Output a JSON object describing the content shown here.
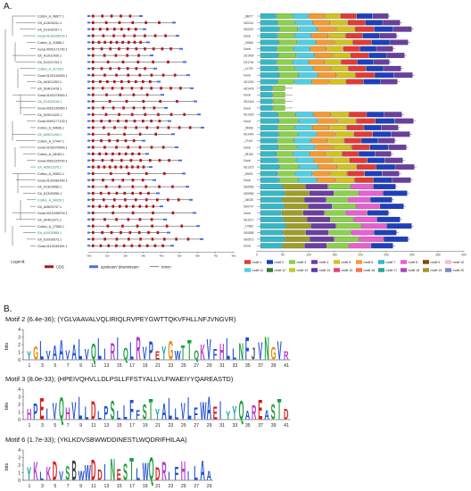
{
  "figure": {
    "panel_a_label": "A.",
    "panel_b_label": "B."
  },
  "gene_structure": {
    "genes": [
      "Cotton_A_08677.1",
      "Gh_A13G0241.1",
      "Gh_D13G0257.1",
      "Gorai.013G026100.1",
      "Cotton_A_31866.1",
      "Gorai.009G171700.1",
      "Gh_A12G1439.1",
      "Gh_D12G1704.1",
      "Cotton_A_11729.1",
      "Gorai.012G164300.1",
      "Gh_A04G1253.1",
      "Gh_D04G1478.1",
      "Gorai.010G078300.1",
      "Gh_D13G2418.1",
      "Gorai.002G150900.1",
      "Gh_D09G1425.1",
      "Gorai.009G177100.1",
      "Cotton_A_04696.1",
      "Gh_A05G1440.1",
      "Cotton_A_27447.1",
      "Gorai.010G075000.1",
      "Cotton_A_28163.1",
      "Gorai.005G225700.1",
      "Gh_A05G1375.1",
      "Cotton_A_00601.1",
      "Gorai.013G081000.1",
      "Gh_A13G0956.1",
      "Gh_D13G0956.1",
      "Cotton_A_34026.1",
      "Gh_A05G0747.1",
      "Gorai.001G098700.1",
      "Gh_A04G1071.1",
      "Cotton_A_17583.1",
      "Gh_A10G0585.1",
      "Gh_D10G0573.1",
      "Gorai.011G045100.1"
    ],
    "axis_ticks": [
      "0kb",
      "1kb",
      "2kb",
      "3kb",
      "4kb",
      "5kb",
      "6kb",
      "7kb",
      "8kb"
    ],
    "legend_title": "Legend:",
    "legend_items": [
      "CDS",
      "upstream/ downstream",
      "Intron"
    ],
    "colors": {
      "cds": "#b5121b",
      "utr": "#4a6fe3",
      "intron": "#333333"
    }
  },
  "motif_map": {
    "axis_ticks": [
      "0",
      "50",
      "100",
      "150",
      "200",
      "250",
      "300",
      "350",
      "400"
    ],
    "motif_labels": [
      "motif 1",
      "motif 2",
      "motif 3",
      "motif 4",
      "motif 5",
      "motif 6",
      "motif 7",
      "motif 8",
      "motif 9",
      "motif 10",
      "motif 11",
      "motif 12",
      "motif 13",
      "motif 14",
      "motif 15",
      "motif 16",
      "motif 17",
      "motif 18",
      "motif 19",
      "motif 20"
    ],
    "motif_colors": [
      "#e53935",
      "#1e3fbf",
      "#8ad14a",
      "#6a3fa0",
      "#d4c21a",
      "#f59a2e",
      "#33b8c8",
      "#e85fd0",
      "#8b4513",
      "#f8bbd0",
      "#4dd0e1",
      "#2e7d32",
      "#c0ca33",
      "#5e35b1",
      "#ec407a",
      "#ff7043",
      "#26a69a",
      "#ab47bc",
      "#9e9d24",
      "#7986cb"
    ]
  },
  "logos": [
    {
      "title": "Motif 2 (6.4e-36); (YGLVAAVALVQLIRIQLRVPEYGWTTQKVFHLLNFJVNGVR)",
      "y_label": "bits",
      "y_ticks": [
        "4",
        "3",
        "2",
        "1",
        "0"
      ],
      "x_ticks": [
        "1",
        "3",
        "5",
        "7",
        "9",
        "11",
        "13",
        "15",
        "17",
        "19",
        "21",
        "23",
        "25",
        "27",
        "29",
        "31",
        "33",
        "35",
        "37",
        "39",
        "41"
      ],
      "sequence": "YGLVAAVALVQLIRIQLRVPEYGWTTQKVFHLLNFJVNGVR"
    },
    {
      "title": "Motif 3 (8.0e-33); (HPEIVQHVLLDLPSLLFFSTYALLVLFWAEIYYQAREASTD)",
      "y_label": "bits",
      "y_ticks": [
        "4",
        "3",
        "2",
        "1",
        "0"
      ],
      "x_ticks": [
        "1",
        "3",
        "5",
        "7",
        "9",
        "11",
        "13",
        "15",
        "17",
        "19",
        "21",
        "23",
        "25",
        "27",
        "29",
        "31",
        "33",
        "35",
        "37",
        "39",
        "41"
      ],
      "sequence": "HPEIVQHVLLDLPSLLFFSTYALLVLFWAEIYYQAREASTD"
    },
    {
      "title": "Motif 6 (1.7e-33); (YKLKDVSBWWDDINESTLWQDRIFHILAA)",
      "y_label": "bits",
      "y_ticks": [
        "4",
        "3",
        "2",
        "1",
        "0"
      ],
      "x_ticks": [
        "1",
        "3",
        "5",
        "7",
        "9",
        "11",
        "13",
        "15",
        "17",
        "19",
        "21",
        "23",
        "25",
        "27",
        "29"
      ],
      "sequence": "YKLKDVSBWWDDINESTLWQDRIFHILAA"
    }
  ]
}
